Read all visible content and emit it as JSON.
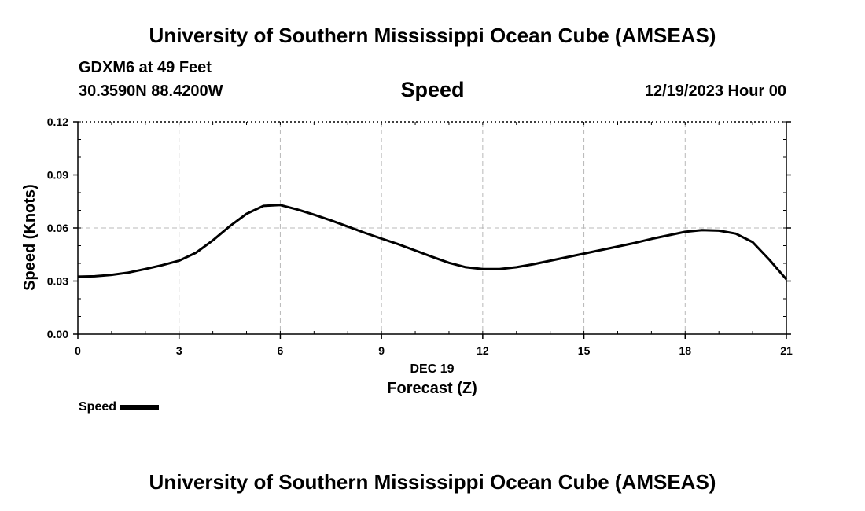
{
  "header": {
    "title": "University of Southern Mississippi Ocean Cube (AMSEAS)",
    "station_name": "GDXM6 at 49 Feet",
    "station_coords": "30.3590N  88.4200W",
    "variable": "Speed",
    "datetime": "12/19/2023 Hour 00"
  },
  "footer": {
    "title": "University of Southern Mississippi Ocean Cube (AMSEAS)"
  },
  "legend": {
    "label": "Speed",
    "color": "#000000"
  },
  "chart_data": {
    "type": "line",
    "title": "Speed",
    "xlabel": "Forecast (Z)",
    "xlabel_date": "DEC 19",
    "ylabel": "Speed (Knots)",
    "xlim": [
      0,
      21
    ],
    "ylim": [
      0,
      0.12
    ],
    "xticks": [
      0,
      3,
      6,
      9,
      12,
      15,
      18,
      21
    ],
    "xtick_labels": [
      "0",
      "3",
      "6",
      "9",
      "12",
      "15",
      "18",
      "21"
    ],
    "yticks": [
      0,
      0.03,
      0.06,
      0.09,
      0.12
    ],
    "ytick_labels": [
      "0.00",
      "0.03",
      "0.06",
      "0.09",
      "0.12"
    ],
    "grid": true,
    "series": [
      {
        "name": "Speed",
        "color": "#000000",
        "x": [
          0,
          0.5,
          1,
          1.5,
          2,
          2.5,
          3,
          3.5,
          4,
          4.5,
          5,
          5.5,
          6,
          6.5,
          7,
          7.5,
          8,
          8.5,
          9,
          9.5,
          10,
          10.5,
          11,
          11.5,
          12,
          12.5,
          13,
          13.5,
          14,
          14.5,
          15,
          15.5,
          16,
          16.5,
          17,
          17.5,
          18,
          18.5,
          19,
          19.5,
          20,
          20.5,
          21
        ],
        "values": [
          0.0325,
          0.0327,
          0.0335,
          0.0348,
          0.0368,
          0.039,
          0.0415,
          0.046,
          0.053,
          0.061,
          0.068,
          0.0725,
          0.073,
          0.0705,
          0.0675,
          0.0643,
          0.0608,
          0.0573,
          0.054,
          0.0508,
          0.0473,
          0.0437,
          0.0403,
          0.0378,
          0.0368,
          0.0368,
          0.0378,
          0.0395,
          0.0415,
          0.0435,
          0.0455,
          0.0475,
          0.0495,
          0.0515,
          0.0538,
          0.0558,
          0.0578,
          0.0588,
          0.0585,
          0.0568,
          0.052,
          0.042,
          0.031
        ]
      }
    ]
  }
}
